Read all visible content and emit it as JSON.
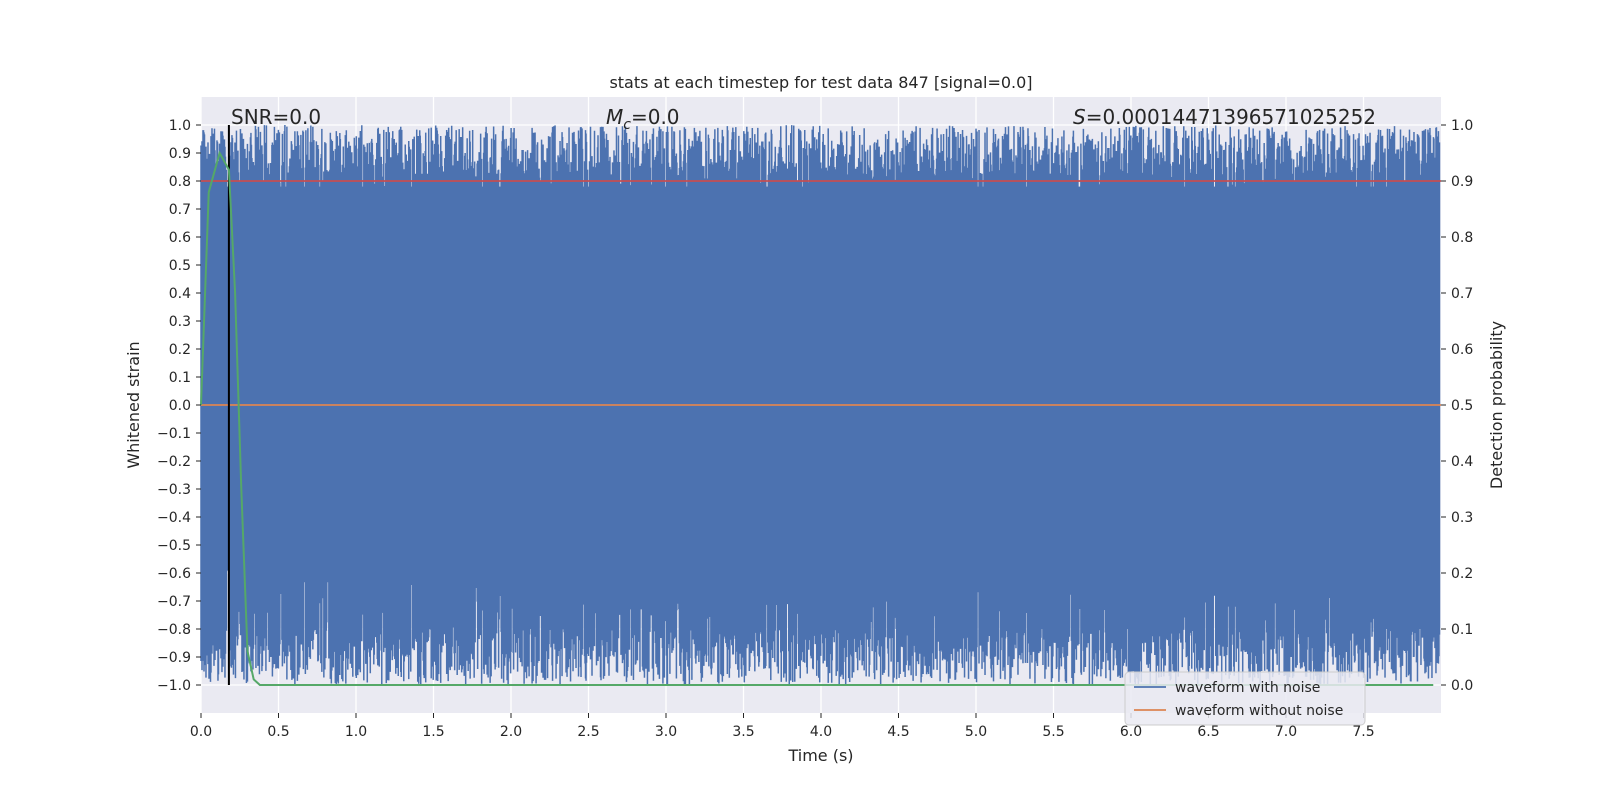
{
  "chart_data": {
    "type": "line",
    "title": "stats at each timestep for test data 847 [signal=0.0]",
    "xlabel": "Time (s)",
    "ylabel": "Whitened strain",
    "y2label": "Detection probability",
    "xlim": [
      0.0,
      8.0
    ],
    "ylim": [
      -1.1,
      1.1
    ],
    "y2lim": [
      -0.05,
      1.05
    ],
    "grid": true,
    "xticks": [
      0.0,
      0.5,
      1.0,
      1.5,
      2.0,
      2.5,
      3.0,
      3.5,
      4.0,
      4.5,
      5.0,
      5.5,
      6.0,
      6.5,
      7.0,
      7.5
    ],
    "xtick_labels": [
      "0.0",
      "0.5",
      "1.0",
      "1.5",
      "2.0",
      "2.5",
      "3.0",
      "3.5",
      "4.0",
      "4.5",
      "5.0",
      "5.5",
      "6.0",
      "6.5",
      "7.0",
      "7.5"
    ],
    "yticks": [
      1.0,
      0.9,
      0.8,
      0.7,
      0.6,
      0.5,
      0.4,
      0.3,
      0.2,
      0.1,
      0.0,
      -0.1,
      -0.2,
      -0.3,
      -0.4,
      -0.5,
      -0.6,
      -0.7,
      -0.8,
      -0.9,
      -1.0
    ],
    "ytick_labels": [
      "1.0",
      "0.9",
      "0.8",
      "0.7",
      "0.6",
      "0.5",
      "0.4",
      "0.3",
      "0.2",
      "0.1",
      "0.0",
      "−0.1",
      "−0.2",
      "−0.3",
      "−0.4",
      "−0.5",
      "−0.6",
      "−0.7",
      "−0.8",
      "−0.9",
      "−1.0"
    ],
    "y2ticks": [
      1.0,
      0.9,
      0.8,
      0.7,
      0.6,
      0.5,
      0.4,
      0.3,
      0.2,
      0.1,
      0.0
    ],
    "y2tick_labels": [
      "1.0",
      "0.9",
      "0.8",
      "0.7",
      "0.6",
      "0.5",
      "0.4",
      "0.3",
      "0.2",
      "0.1",
      "0.0"
    ],
    "series": [
      {
        "name": "waveform with noise",
        "axis": "left",
        "color": "#4c72b0",
        "style": "dense noise filling approximately -1.0 to 1.0 over 0 to 8 s"
      },
      {
        "name": "waveform without noise",
        "axis": "left",
        "color": "#dd8452",
        "values_note": "flat at 0.0",
        "x": [
          0.0,
          8.0
        ],
        "y": [
          0.0,
          0.0
        ]
      },
      {
        "name": "detection probability",
        "axis": "right",
        "color": "#55a868",
        "x": [
          0.0,
          0.05,
          0.12,
          0.18,
          0.22,
          0.26,
          0.3,
          0.34,
          0.38,
          7.95
        ],
        "y": [
          0.5,
          0.88,
          0.95,
          0.92,
          0.7,
          0.35,
          0.06,
          0.01,
          0.0,
          0.0
        ]
      },
      {
        "name": "threshold",
        "axis": "right",
        "color": "#c44e52",
        "x": [
          0.0,
          8.0
        ],
        "y": [
          0.9,
          0.9
        ]
      }
    ],
    "vlines": [
      {
        "x": 0.18,
        "color": "#000000"
      }
    ],
    "annotations": {
      "snr": "SNR=0.0",
      "mc_symbol": "M",
      "mc_sub": "c",
      "mc_value": "=0.0",
      "s_symbol": "S",
      "s_value": "=0.00014471396571025252"
    },
    "legend": {
      "location": "lower-right",
      "entries": [
        {
          "label": "waveform with noise",
          "color": "#4c72b0"
        },
        {
          "label": "waveform without noise",
          "color": "#dd8452"
        }
      ]
    },
    "colors": {
      "plot_bg": "#eaeaf2",
      "grid": "#ffffff",
      "noise": "#4c72b0",
      "clean": "#dd8452",
      "prob": "#55a868",
      "threshold": "#c44e52",
      "vline": "#000000"
    }
  }
}
